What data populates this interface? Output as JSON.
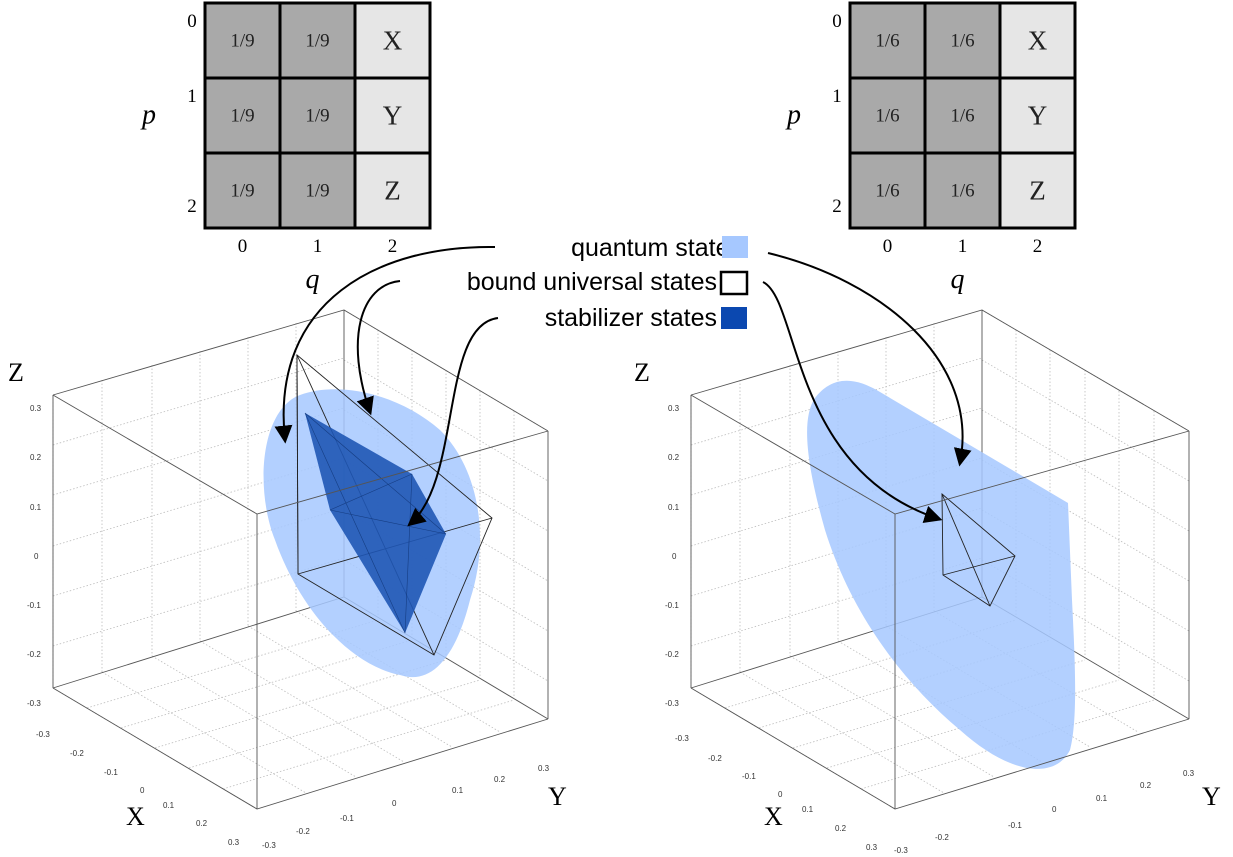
{
  "colors": {
    "dark_cell": "#a9a9a9",
    "light_cell": "#e6e6e6",
    "quantum": "#a6c8ff",
    "stabilizer": "#1f57b5",
    "stabilizer_swatch": "#0b48b0",
    "grid_line": "#b8b8b8",
    "box_line": "#444444"
  },
  "left_table": {
    "p_label": "p",
    "q_label": "q",
    "row_labels": [
      "0",
      "1",
      "2"
    ],
    "col_labels": [
      "0",
      "1",
      "2"
    ],
    "cells": [
      [
        "1/9",
        "1/9",
        "X"
      ],
      [
        "1/9",
        "1/9",
        "Y"
      ],
      [
        "1/9",
        "1/9",
        "Z"
      ]
    ]
  },
  "right_table": {
    "p_label": "p",
    "q_label": "q",
    "row_labels": [
      "0",
      "1",
      "2"
    ],
    "col_labels": [
      "0",
      "1",
      "2"
    ],
    "cells": [
      [
        "1/6",
        "1/6",
        "X"
      ],
      [
        "1/6",
        "1/6",
        "Y"
      ],
      [
        "1/6",
        "1/6",
        "Z"
      ]
    ]
  },
  "legend": {
    "quantum": "quantum states",
    "bound": "bound universal states",
    "stabilizer": "stabilizer states"
  },
  "left_plot": {
    "z_axis": "Z",
    "x_axis": "X",
    "y_axis": "Y",
    "z_ticks": [
      "0.3",
      "0.2",
      "0.1",
      "0",
      "-0.1",
      "-0.2",
      "-0.3"
    ],
    "x_ticks": [
      "-0.3",
      "-0.2",
      "-0.1",
      "0",
      "0.1",
      "0.2",
      "0.3"
    ],
    "y_ticks": [
      "-0.3",
      "-0.2",
      "-0.1",
      "0",
      "0.1",
      "0.2",
      "0.3"
    ]
  },
  "right_plot": {
    "z_axis": "Z",
    "x_axis": "X",
    "y_axis": "Y",
    "z_ticks": [
      "0.3",
      "0.2",
      "0.1",
      "0",
      "-0.1",
      "-0.2",
      "-0.3"
    ],
    "x_ticks": [
      "-0.3",
      "-0.2",
      "-0.1",
      "0",
      "0.1",
      "0.2",
      "0.3"
    ],
    "y_ticks": [
      "-0.3",
      "-0.2",
      "-0.1",
      "0",
      "0.1",
      "0.2",
      "0.3"
    ]
  }
}
